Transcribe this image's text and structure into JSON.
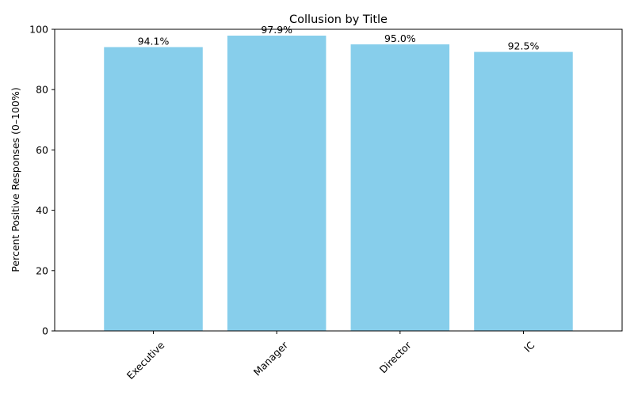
{
  "chart_data": {
    "type": "bar",
    "title": "Collusion by Title",
    "xlabel": "",
    "ylabel": "Percent Positive Responses (0–100%)",
    "categories": [
      "Executive",
      "Manager",
      "Director",
      "IC"
    ],
    "values": [
      94.1,
      97.9,
      95.0,
      92.5
    ],
    "data_labels": [
      "94.1%",
      "97.9%",
      "95.0%",
      "92.5%"
    ],
    "ylim": [
      0,
      100
    ],
    "yticks": [
      0,
      20,
      40,
      60,
      80,
      100
    ],
    "grid": false,
    "legend": "none",
    "bar_color": "#87ceeb",
    "tick_label_rotation": "45 degrees"
  }
}
